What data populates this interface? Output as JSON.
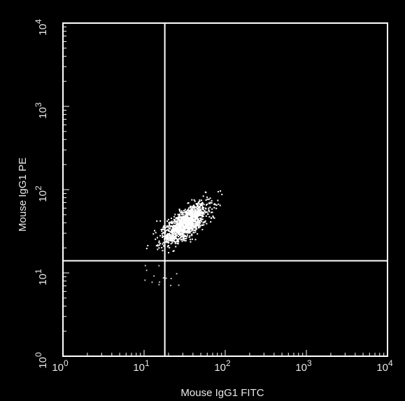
{
  "chart_data": {
    "type": "scatter",
    "title": "",
    "xlabel": "Mouse IgG1 FITC",
    "ylabel": "Mouse IgG1 PE",
    "xscale": "log",
    "yscale": "log",
    "xlim": [
      1,
      10000
    ],
    "ylim": [
      1,
      10000
    ],
    "x_ticks": [
      {
        "base": "10",
        "exp": "0",
        "value": 1
      },
      {
        "base": "10",
        "exp": "1",
        "value": 10
      },
      {
        "base": "10",
        "exp": "2",
        "value": 100
      },
      {
        "base": "10",
        "exp": "3",
        "value": 1000
      },
      {
        "base": "10",
        "exp": "4",
        "value": 10000
      }
    ],
    "y_ticks": [
      {
        "base": "10",
        "exp": "0",
        "value": 1
      },
      {
        "base": "10",
        "exp": "1",
        "value": 10
      },
      {
        "base": "10",
        "exp": "2",
        "value": 100
      },
      {
        "base": "10",
        "exp": "3",
        "value": 1000
      },
      {
        "base": "10",
        "exp": "4",
        "value": 10000
      }
    ],
    "quadrant_gates": {
      "x": 18,
      "y": 14
    },
    "population": {
      "center": [
        32,
        40
      ],
      "x_range": [
        10,
        90
      ],
      "y_range": [
        12,
        100
      ]
    },
    "colors": {
      "background": "#000000",
      "points": "#ffffff",
      "frame": "#ffffff",
      "text": "#e8e8e8"
    },
    "grid": false,
    "legend": "none"
  }
}
